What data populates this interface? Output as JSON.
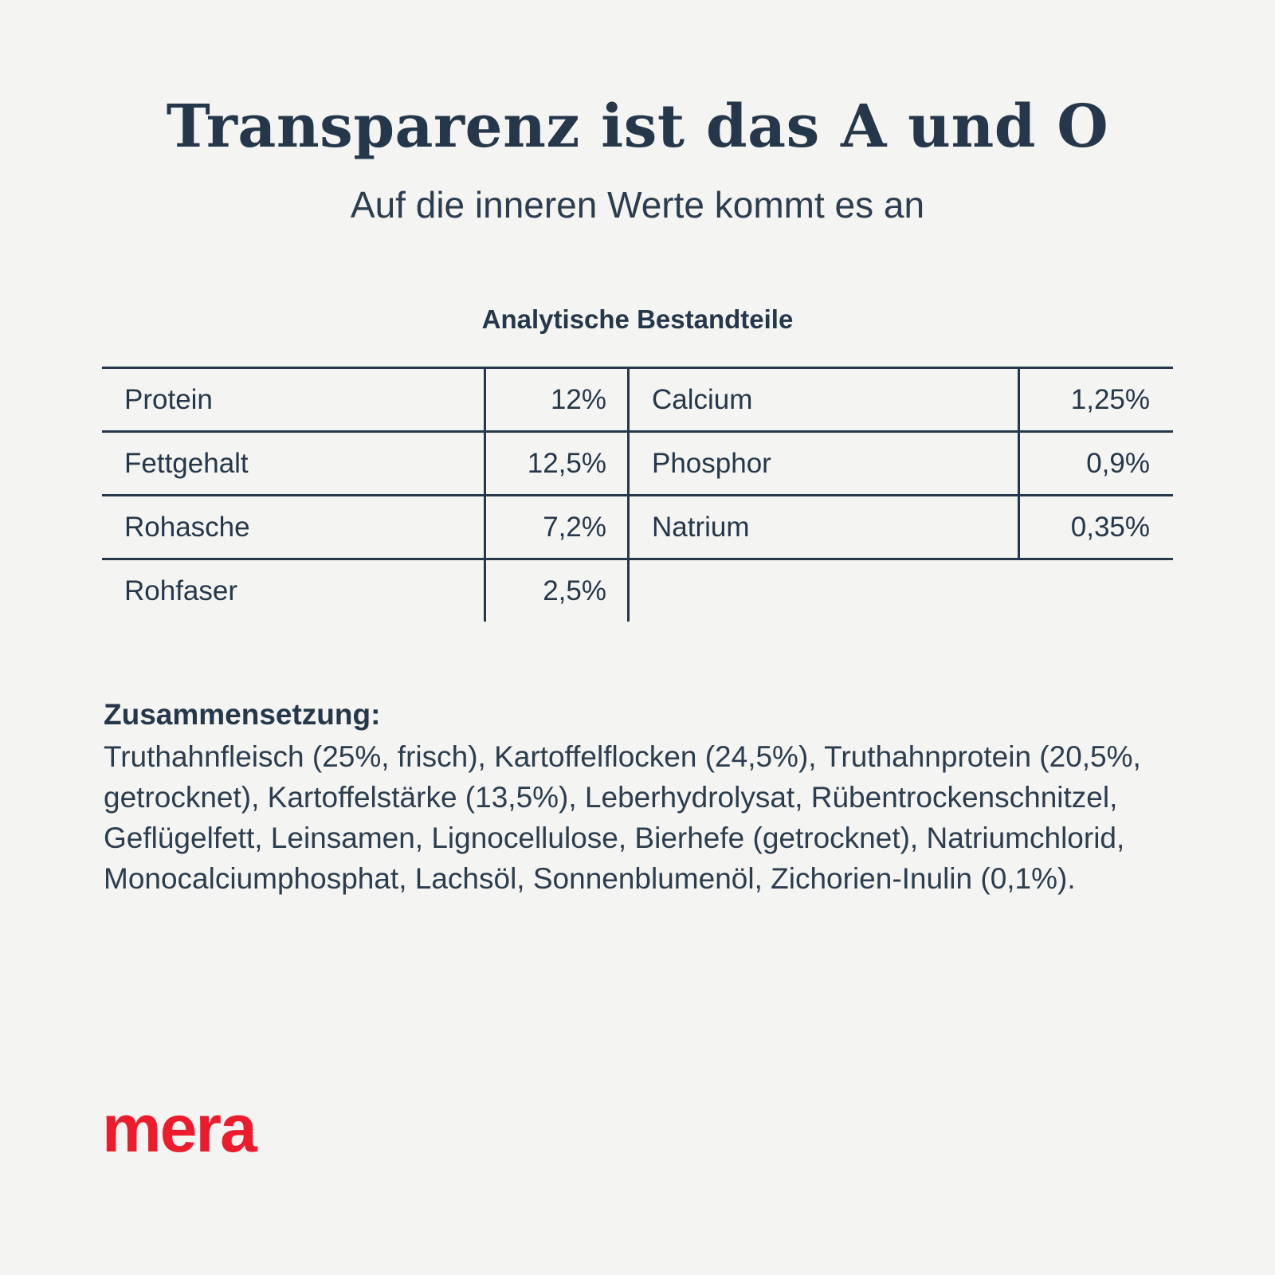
{
  "page": {
    "title": "Transparenz ist das A und O",
    "subtitle": "Auf die inneren Werte kommt es an"
  },
  "table": {
    "heading": "Analytische Bestandteile",
    "left_rows": [
      {
        "label": "Protein",
        "value": "12%"
      },
      {
        "label": "Fettgehalt",
        "value": "12,5%"
      },
      {
        "label": "Rohasche",
        "value": "7,2%"
      },
      {
        "label": "Rohfaser",
        "value": "2,5%"
      }
    ],
    "right_rows": [
      {
        "label": "Calcium",
        "value": "1,25%"
      },
      {
        "label": "Phosphor",
        "value": "0,9%"
      },
      {
        "label": "Natrium",
        "value": "0,35%"
      }
    ]
  },
  "composition": {
    "heading": "Zusammensetzung:",
    "text": "Truthahnfleisch (25%, frisch), Kartoffelflocken (24,5%),  Truthahnprotein (20,5%, getrocknet), Kartoffelstärke (13,5%), Leberhydrolysat, Rübentrockenschnitzel, Geflügelfett, Leinsamen, Lignocellulose, Bierhefe (getrocknet), Natriumchlorid, Monocalciumphosphat, Lachsöl, Sonnenblumenöl, Zichorien-Inulin (0,1%)."
  },
  "brand": {
    "logo_text": "mera",
    "logo_color": "#ec1c2d"
  },
  "colors": {
    "background": "#f4f4f2",
    "text": "#25374a"
  }
}
